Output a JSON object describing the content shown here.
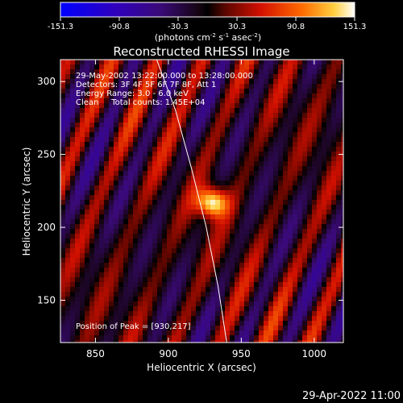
{
  "chart_data": {
    "type": "heatmap",
    "title": "Reconstructed RHESSI Image",
    "xlabel": "Heliocentric X (arcsec)",
    "ylabel": "Heliocentric Y (arcsec)",
    "xlim": [
      826,
      1020
    ],
    "ylim": [
      121,
      315
    ],
    "xticks": [
      850,
      900,
      950,
      1000
    ],
    "yticks": [
      150,
      200,
      250,
      300
    ],
    "colorbar": {
      "ticks": [
        "-151.3",
        "-90.8",
        "-30.3",
        "30.3",
        "90.8",
        "151.3"
      ],
      "min": -151.3,
      "max": 151.3,
      "label_parts": [
        "(photons cm",
        "-2",
        " s",
        "-1",
        " asec",
        "-2",
        ")"
      ]
    },
    "annotations": [
      "29-May-2002 13:22:00.000 to 13:28:00.000",
      "Detectors: 3F 4F 5F 6F 7F 8F, Att 1",
      "Energy Range: 3.0 - 6.0 keV",
      "Clean     Total counts: 1.45E+04"
    ],
    "peak_label": "Position of Peak = [930,217]",
    "peak": {
      "x": 930,
      "y": 217,
      "value": 151.3
    },
    "limb_curve": [
      [
        892,
        315
      ],
      [
        905,
        280
      ],
      [
        916,
        240
      ],
      [
        926,
        200
      ],
      [
        934,
        160
      ],
      [
        940,
        121
      ]
    ]
  },
  "footer_timestamp": "29-Apr-2022 11:00"
}
